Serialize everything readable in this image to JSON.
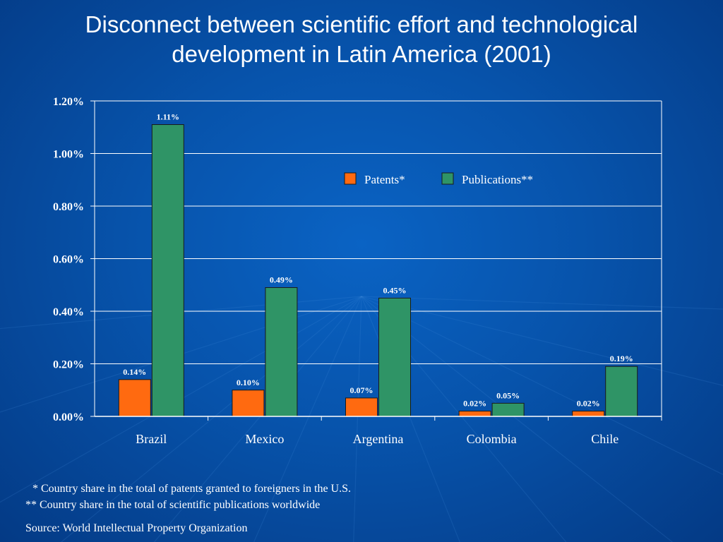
{
  "slide": {
    "title_line1": "Disconnect between scientific effort and technological",
    "title_line2": "development in Latin America (2001)",
    "footnote_patents": "* Country share in the total of patents granted to foreigners in the U.S.",
    "footnote_publications": "** Country share in the total of scientific publications worldwide",
    "source": "Source: World Intellectual Property Organization"
  },
  "colors": {
    "background": "#0753ab",
    "patents": "#ff6a10",
    "publications": "#2f9466",
    "grid": "#ffffff",
    "text": "#ffffff"
  },
  "chart_data": {
    "type": "bar",
    "categories": [
      "Brazil",
      "Mexico",
      "Argentina",
      "Colombia",
      "Chile"
    ],
    "series": [
      {
        "name": "Patents*",
        "color": "#ff6a10",
        "values": [
          0.14,
          0.1,
          0.07,
          0.02,
          0.02
        ],
        "labels": [
          "0.14%",
          "0.10%",
          "0.07%",
          "0.02%",
          "0.02%"
        ]
      },
      {
        "name": "Publications**",
        "color": "#2f9466",
        "values": [
          1.11,
          0.49,
          0.45,
          0.05,
          0.19
        ],
        "labels": [
          "1.11%",
          "0.49%",
          "0.45%",
          "0.05%",
          "0.19%"
        ]
      }
    ],
    "ylim": [
      0,
      1.2
    ],
    "yticks": [
      0,
      0.2,
      0.4,
      0.6,
      0.8,
      1.0,
      1.2
    ],
    "ytick_labels": [
      "0.00%",
      "0.20%",
      "0.40%",
      "0.60%",
      "0.80%",
      "1.00%",
      "1.20%"
    ],
    "grid": true,
    "legend_position": "top-right"
  }
}
